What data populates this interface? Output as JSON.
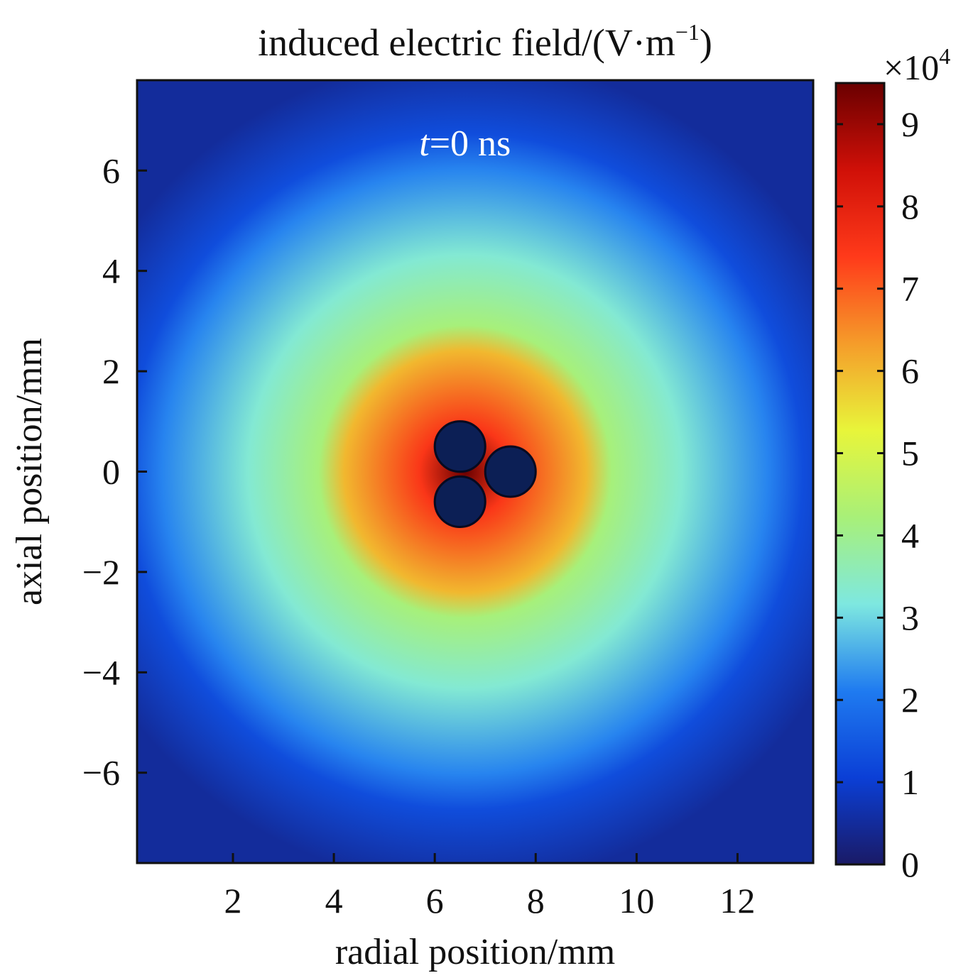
{
  "chart_data": {
    "type": "heatmap",
    "title_prefix": "induced electric field/(V·m",
    "title_superscript": "−1",
    "title_suffix": ")",
    "annotation_var": "t",
    "annotation_rest": "=0 ns",
    "xlabel": "radial position/mm",
    "ylabel": "axial position/mm",
    "xlim": [
      0.1,
      13.5
    ],
    "ylim": [
      -7.8,
      7.8
    ],
    "xticks": [
      2,
      4,
      6,
      8,
      10,
      12
    ],
    "xtick_labels": [
      "2",
      "4",
      "6",
      "8",
      "10",
      "12"
    ],
    "yticks": [
      6,
      4,
      2,
      0,
      -2,
      -4,
      -6
    ],
    "ytick_labels": [
      "6",
      "4",
      "2",
      "0",
      "−2",
      "−4",
      "−6"
    ],
    "colorbar": {
      "label_prefix": "×10",
      "label_exponent": "4",
      "range": [
        0,
        9.5
      ],
      "ticks": [
        0,
        1,
        2,
        3,
        4,
        5,
        6,
        7,
        8,
        9
      ],
      "tick_labels": [
        "0",
        "1",
        "2",
        "3",
        "4",
        "5",
        "6",
        "7",
        "8",
        "9"
      ],
      "colormap": [
        "#1a1a66",
        "#0b3fd6",
        "#1f7bf0",
        "#7ee8e0",
        "#a8f078",
        "#e8f53a",
        "#f59c2a",
        "#ff3a1a",
        "#d01008",
        "#6a0000"
      ]
    },
    "field_center": [
      6.6,
      0
    ],
    "conductors": [
      {
        "x": 6.5,
        "y": 0.5,
        "r": 0.5
      },
      {
        "x": 7.5,
        "y": 0.0,
        "r": 0.5
      },
      {
        "x": 6.5,
        "y": -0.6,
        "r": 0.5
      }
    ],
    "conductor_color": "#0c1f55",
    "field_levels": [
      {
        "distance_mm": 0,
        "value": 9.5
      },
      {
        "distance_mm": 0.9,
        "value": 7.5
      },
      {
        "distance_mm": 2.4,
        "value": 6.0
      },
      {
        "distance_mm": 2.9,
        "value": 4.2
      },
      {
        "distance_mm": 4.3,
        "value": 3.3
      },
      {
        "distance_mm": 6.0,
        "value": 2.2
      },
      {
        "distance_mm": 6.7,
        "value": 1.3
      },
      {
        "distance_mm": 8.2,
        "value": 0.5
      }
    ]
  }
}
